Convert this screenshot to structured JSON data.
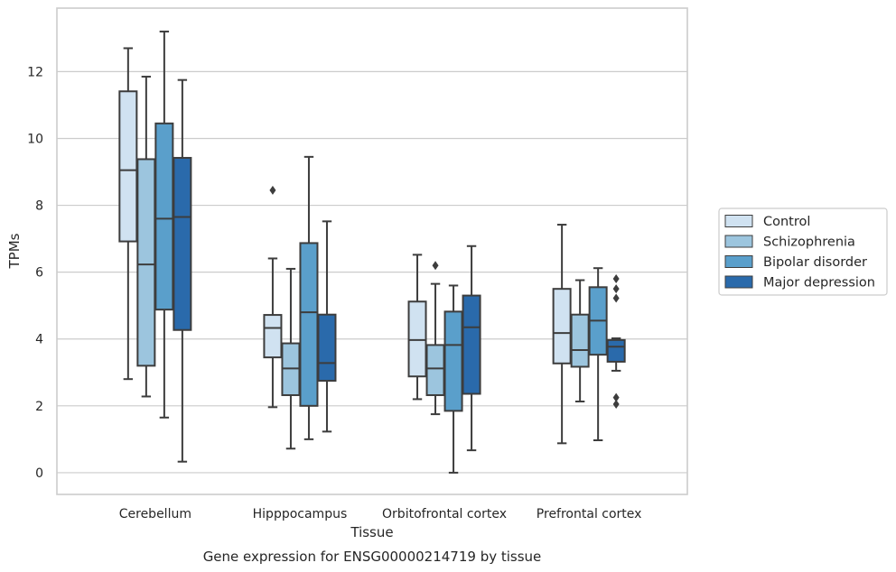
{
  "chart_data": {
    "type": "boxplot",
    "caption": "Gene expression for ENSG00000214719 by tissue",
    "xlabel": "Tissue",
    "ylabel": "TPMs",
    "ylim": [
      -0.65,
      13.9
    ],
    "yticks": [
      0,
      2,
      4,
      6,
      8,
      10,
      12
    ],
    "grid": true,
    "legend_position": "right",
    "categories": [
      "Cerebellum",
      "Hipppocampus",
      "Orbitofrontal cortex",
      "Prefrontal cortex"
    ],
    "series": [
      {
        "name": "Control",
        "color": "#d0e2f1",
        "boxes": [
          {
            "whislo": 2.8,
            "q1": 6.92,
            "med": 9.05,
            "q3": 11.41,
            "whishi": 12.7,
            "fliers": []
          },
          {
            "whislo": 1.96,
            "q1": 3.45,
            "med": 4.33,
            "q3": 4.72,
            "whishi": 6.41,
            "fliers": [
              8.45
            ]
          },
          {
            "whislo": 2.2,
            "q1": 2.88,
            "med": 3.97,
            "q3": 5.12,
            "whishi": 6.52,
            "fliers": []
          },
          {
            "whislo": 0.88,
            "q1": 3.27,
            "med": 4.18,
            "q3": 5.5,
            "whishi": 7.42,
            "fliers": []
          }
        ]
      },
      {
        "name": "Schizophrenia",
        "color": "#9cc5de",
        "boxes": [
          {
            "whislo": 2.28,
            "q1": 3.2,
            "med": 6.23,
            "q3": 9.38,
            "whishi": 11.85,
            "fliers": []
          },
          {
            "whislo": 0.72,
            "q1": 2.32,
            "med": 3.12,
            "q3": 3.87,
            "whishi": 6.1,
            "fliers": []
          },
          {
            "whislo": 1.75,
            "q1": 2.32,
            "med": 3.12,
            "q3": 3.82,
            "whishi": 5.65,
            "fliers": [
              6.2
            ]
          },
          {
            "whislo": 2.13,
            "q1": 3.17,
            "med": 3.67,
            "q3": 4.73,
            "whishi": 5.76,
            "fliers": []
          }
        ]
      },
      {
        "name": "Bipolar disorder",
        "color": "#5a9fcb",
        "boxes": [
          {
            "whislo": 1.65,
            "q1": 4.88,
            "med": 7.6,
            "q3": 10.45,
            "whishi": 13.2,
            "fliers": []
          },
          {
            "whislo": 1.0,
            "q1": 2.0,
            "med": 4.8,
            "q3": 6.87,
            "whishi": 9.45,
            "fliers": []
          },
          {
            "whislo": 0.0,
            "q1": 1.85,
            "med": 3.82,
            "q3": 4.82,
            "whishi": 5.6,
            "fliers": []
          },
          {
            "whislo": 0.97,
            "q1": 3.53,
            "med": 4.55,
            "q3": 5.55,
            "whishi": 6.12,
            "fliers": []
          }
        ]
      },
      {
        "name": "Major depression",
        "color": "#2a6aab",
        "boxes": [
          {
            "whislo": 0.33,
            "q1": 4.27,
            "med": 7.65,
            "q3": 9.42,
            "whishi": 11.75,
            "fliers": []
          },
          {
            "whislo": 1.23,
            "q1": 2.75,
            "med": 3.28,
            "q3": 4.73,
            "whishi": 7.52,
            "fliers": []
          },
          {
            "whislo": 0.67,
            "q1": 2.36,
            "med": 4.35,
            "q3": 5.3,
            "whishi": 6.78,
            "fliers": []
          },
          {
            "whislo": 3.05,
            "q1": 3.32,
            "med": 3.77,
            "q3": 3.97,
            "whishi": 4.02,
            "fliers": [
              5.8,
              5.5,
              5.22,
              2.25,
              2.05
            ]
          }
        ]
      }
    ]
  }
}
